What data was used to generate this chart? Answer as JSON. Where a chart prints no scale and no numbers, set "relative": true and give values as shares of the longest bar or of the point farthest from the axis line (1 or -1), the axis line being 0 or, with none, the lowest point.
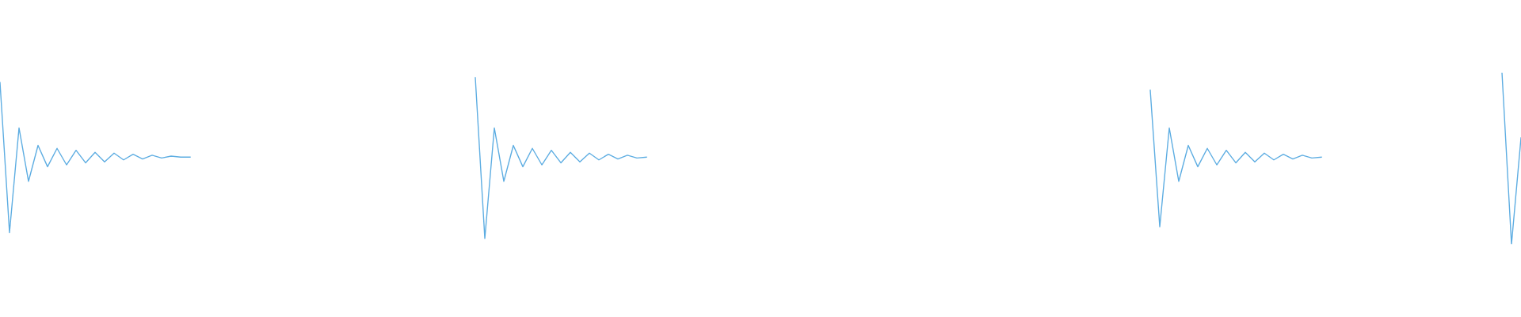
{
  "chart_data": {
    "type": "line",
    "relative": true,
    "line_style": "solid",
    "marker": "none",
    "categories": [
      null,
      null,
      null,
      null,
      null,
      null,
      null,
      null,
      null,
      null,
      null,
      null,
      null,
      null,
      null,
      null,
      null,
      null,
      null,
      null,
      null,
      null,
      null,
      null,
      null,
      null,
      null,
      null,
      null,
      null,
      null,
      null,
      null,
      null,
      null,
      null,
      null,
      null,
      null,
      null,
      null,
      null,
      null,
      null,
      null,
      null,
      null,
      null,
      null,
      null,
      null,
      null,
      null,
      null,
      null,
      null,
      null,
      null,
      null,
      null,
      null,
      null,
      null,
      null,
      null,
      null,
      null,
      null,
      null,
      null,
      null,
      null,
      null,
      null,
      null,
      null,
      null,
      null,
      null,
      null,
      null,
      null,
      null,
      null,
      null,
      null,
      null,
      null,
      null,
      null,
      null,
      null,
      null,
      null,
      null,
      null,
      null,
      null,
      null,
      null,
      null,
      null,
      null,
      null,
      null,
      null,
      null,
      null,
      null,
      null,
      null,
      null,
      null,
      null,
      null,
      null,
      null,
      null,
      null,
      null,
      null,
      null,
      null,
      null,
      null,
      null,
      null,
      null,
      null,
      null,
      null,
      null,
      null,
      null,
      null,
      null,
      null,
      null,
      null,
      null,
      null,
      null,
      null,
      null,
      null,
      null,
      null,
      null,
      null,
      null,
      null,
      null,
      null,
      null,
      null,
      null,
      null,
      null,
      null,
      null,
      null
    ],
    "series": [
      {
        "color": "#5dade2",
        "values": [
          0.943,
          0.068,
          0.678,
          0.367,
          0.576,
          0.452,
          0.559,
          0.463,
          0.548,
          0.475,
          0.536,
          0.48,
          0.531,
          0.492,
          0.525,
          0.497,
          0.519,
          0.503,
          0.514,
          0.508,
          0.508,
          null,
          null,
          null,
          null,
          null,
          null,
          null,
          null,
          null,
          null,
          null,
          null,
          null,
          null,
          null,
          null,
          null,
          null,
          null,
          null,
          null,
          null,
          null,
          null,
          null,
          null,
          null,
          null,
          null,
          null,
          null,
          null,
          null,
          null,
          null,
          null,
          null,
          null,
          null,
          null,
          null,
          null,
          null,
          null,
          null,
          null,
          null,
          null,
          null,
          null,
          null,
          null,
          null,
          null,
          null,
          null,
          null,
          null,
          null,
          null,
          null,
          null,
          null,
          null,
          null,
          null,
          null,
          null,
          null,
          null,
          null,
          null,
          null,
          null,
          null,
          null,
          null,
          null,
          null,
          null,
          null,
          null,
          null,
          null,
          null,
          null,
          null,
          null,
          null,
          null,
          null,
          null,
          null,
          null,
          null,
          null,
          null,
          null,
          null,
          null,
          null,
          null,
          null,
          null,
          null,
          null,
          null,
          null,
          null,
          null,
          null,
          null,
          null,
          null,
          null,
          null,
          null,
          null,
          null,
          null,
          null,
          null,
          null,
          null,
          null,
          null,
          null,
          null,
          null,
          null,
          null,
          null,
          null,
          null,
          null,
          null,
          null,
          null,
          null,
          null
        ]
      },
      {
        "color": "#5dade2",
        "values": [
          null,
          null,
          null,
          null,
          null,
          null,
          null,
          null,
          null,
          null,
          null,
          null,
          null,
          null,
          null,
          null,
          null,
          null,
          null,
          null,
          null,
          null,
          null,
          null,
          null,
          null,
          null,
          null,
          null,
          null,
          null,
          null,
          null,
          null,
          null,
          null,
          null,
          null,
          null,
          null,
          null,
          null,
          null,
          null,
          null,
          null,
          null,
          null,
          null,
          null,
          0.971,
          0.034,
          0.678,
          0.367,
          0.576,
          0.452,
          0.559,
          0.463,
          0.548,
          0.475,
          0.536,
          0.48,
          0.531,
          0.492,
          0.525,
          0.497,
          0.519,
          0.503,
          0.508,
          null,
          null,
          null,
          null,
          null,
          null,
          null,
          null,
          null,
          null,
          null,
          null,
          null,
          null,
          null,
          null,
          null,
          null,
          null,
          null,
          null,
          null,
          null,
          null,
          null,
          null,
          null,
          null,
          null,
          null,
          null,
          null,
          null,
          null,
          null,
          null,
          null,
          null,
          null,
          null,
          null,
          null,
          null,
          null,
          null,
          null,
          null,
          null,
          null,
          null,
          null,
          null,
          null,
          null,
          null,
          null,
          null,
          null,
          null,
          null,
          null,
          null,
          null,
          null,
          null,
          null,
          null,
          null,
          null,
          null,
          null,
          null,
          null,
          null,
          null,
          null,
          null,
          null,
          null,
          null,
          null,
          null,
          null,
          null,
          null,
          null,
          null,
          null,
          null,
          null,
          null,
          null
        ]
      },
      {
        "color": "#5dade2",
        "values": [
          null,
          null,
          null,
          null,
          null,
          null,
          null,
          null,
          null,
          null,
          null,
          null,
          null,
          null,
          null,
          null,
          null,
          null,
          null,
          null,
          null,
          null,
          null,
          null,
          null,
          null,
          null,
          null,
          null,
          null,
          null,
          null,
          null,
          null,
          null,
          null,
          null,
          null,
          null,
          null,
          null,
          null,
          null,
          null,
          null,
          null,
          null,
          null,
          null,
          null,
          null,
          null,
          null,
          null,
          null,
          null,
          null,
          null,
          null,
          null,
          null,
          null,
          null,
          null,
          null,
          null,
          null,
          null,
          null,
          null,
          null,
          null,
          null,
          null,
          null,
          null,
          null,
          null,
          null,
          null,
          null,
          null,
          null,
          null,
          null,
          null,
          null,
          null,
          null,
          null,
          null,
          null,
          null,
          null,
          null,
          null,
          null,
          null,
          null,
          null,
          null,
          null,
          null,
          null,
          null,
          null,
          null,
          null,
          null,
          null,
          null,
          null,
          null,
          null,
          null,
          null,
          null,
          null,
          null,
          null,
          null,
          0.898,
          0.102,
          0.678,
          0.367,
          0.576,
          0.452,
          0.559,
          0.463,
          0.548,
          0.475,
          0.536,
          0.48,
          0.531,
          0.492,
          0.525,
          0.497,
          0.519,
          0.503,
          0.508,
          null,
          null,
          null,
          null,
          null,
          null,
          null,
          null,
          null,
          null,
          null,
          null,
          null,
          null,
          null,
          null,
          null,
          null,
          null,
          null,
          null
        ]
      },
      {
        "color": "#5dade2",
        "values": [
          null,
          null,
          null,
          null,
          null,
          null,
          null,
          null,
          null,
          null,
          null,
          null,
          null,
          null,
          null,
          null,
          null,
          null,
          null,
          null,
          null,
          null,
          null,
          null,
          null,
          null,
          null,
          null,
          null,
          null,
          null,
          null,
          null,
          null,
          null,
          null,
          null,
          null,
          null,
          null,
          null,
          null,
          null,
          null,
          null,
          null,
          null,
          null,
          null,
          null,
          null,
          null,
          null,
          null,
          null,
          null,
          null,
          null,
          null,
          null,
          null,
          null,
          null,
          null,
          null,
          null,
          null,
          null,
          null,
          null,
          null,
          null,
          null,
          null,
          null,
          null,
          null,
          null,
          null,
          null,
          null,
          null,
          null,
          null,
          null,
          null,
          null,
          null,
          null,
          null,
          null,
          null,
          null,
          null,
          null,
          null,
          null,
          null,
          null,
          null,
          null,
          null,
          null,
          null,
          null,
          null,
          null,
          null,
          null,
          null,
          null,
          null,
          null,
          null,
          null,
          null,
          null,
          null,
          null,
          null,
          null,
          null,
          null,
          null,
          null,
          null,
          null,
          null,
          null,
          null,
          null,
          null,
          null,
          null,
          null,
          null,
          null,
          null,
          null,
          null,
          null,
          null,
          null,
          null,
          null,
          null,
          null,
          null,
          null,
          null,
          null,
          null,
          null,
          null,
          null,
          null,
          null,
          null,
          1.0,
          0.0,
          0.62
        ]
      }
    ]
  }
}
